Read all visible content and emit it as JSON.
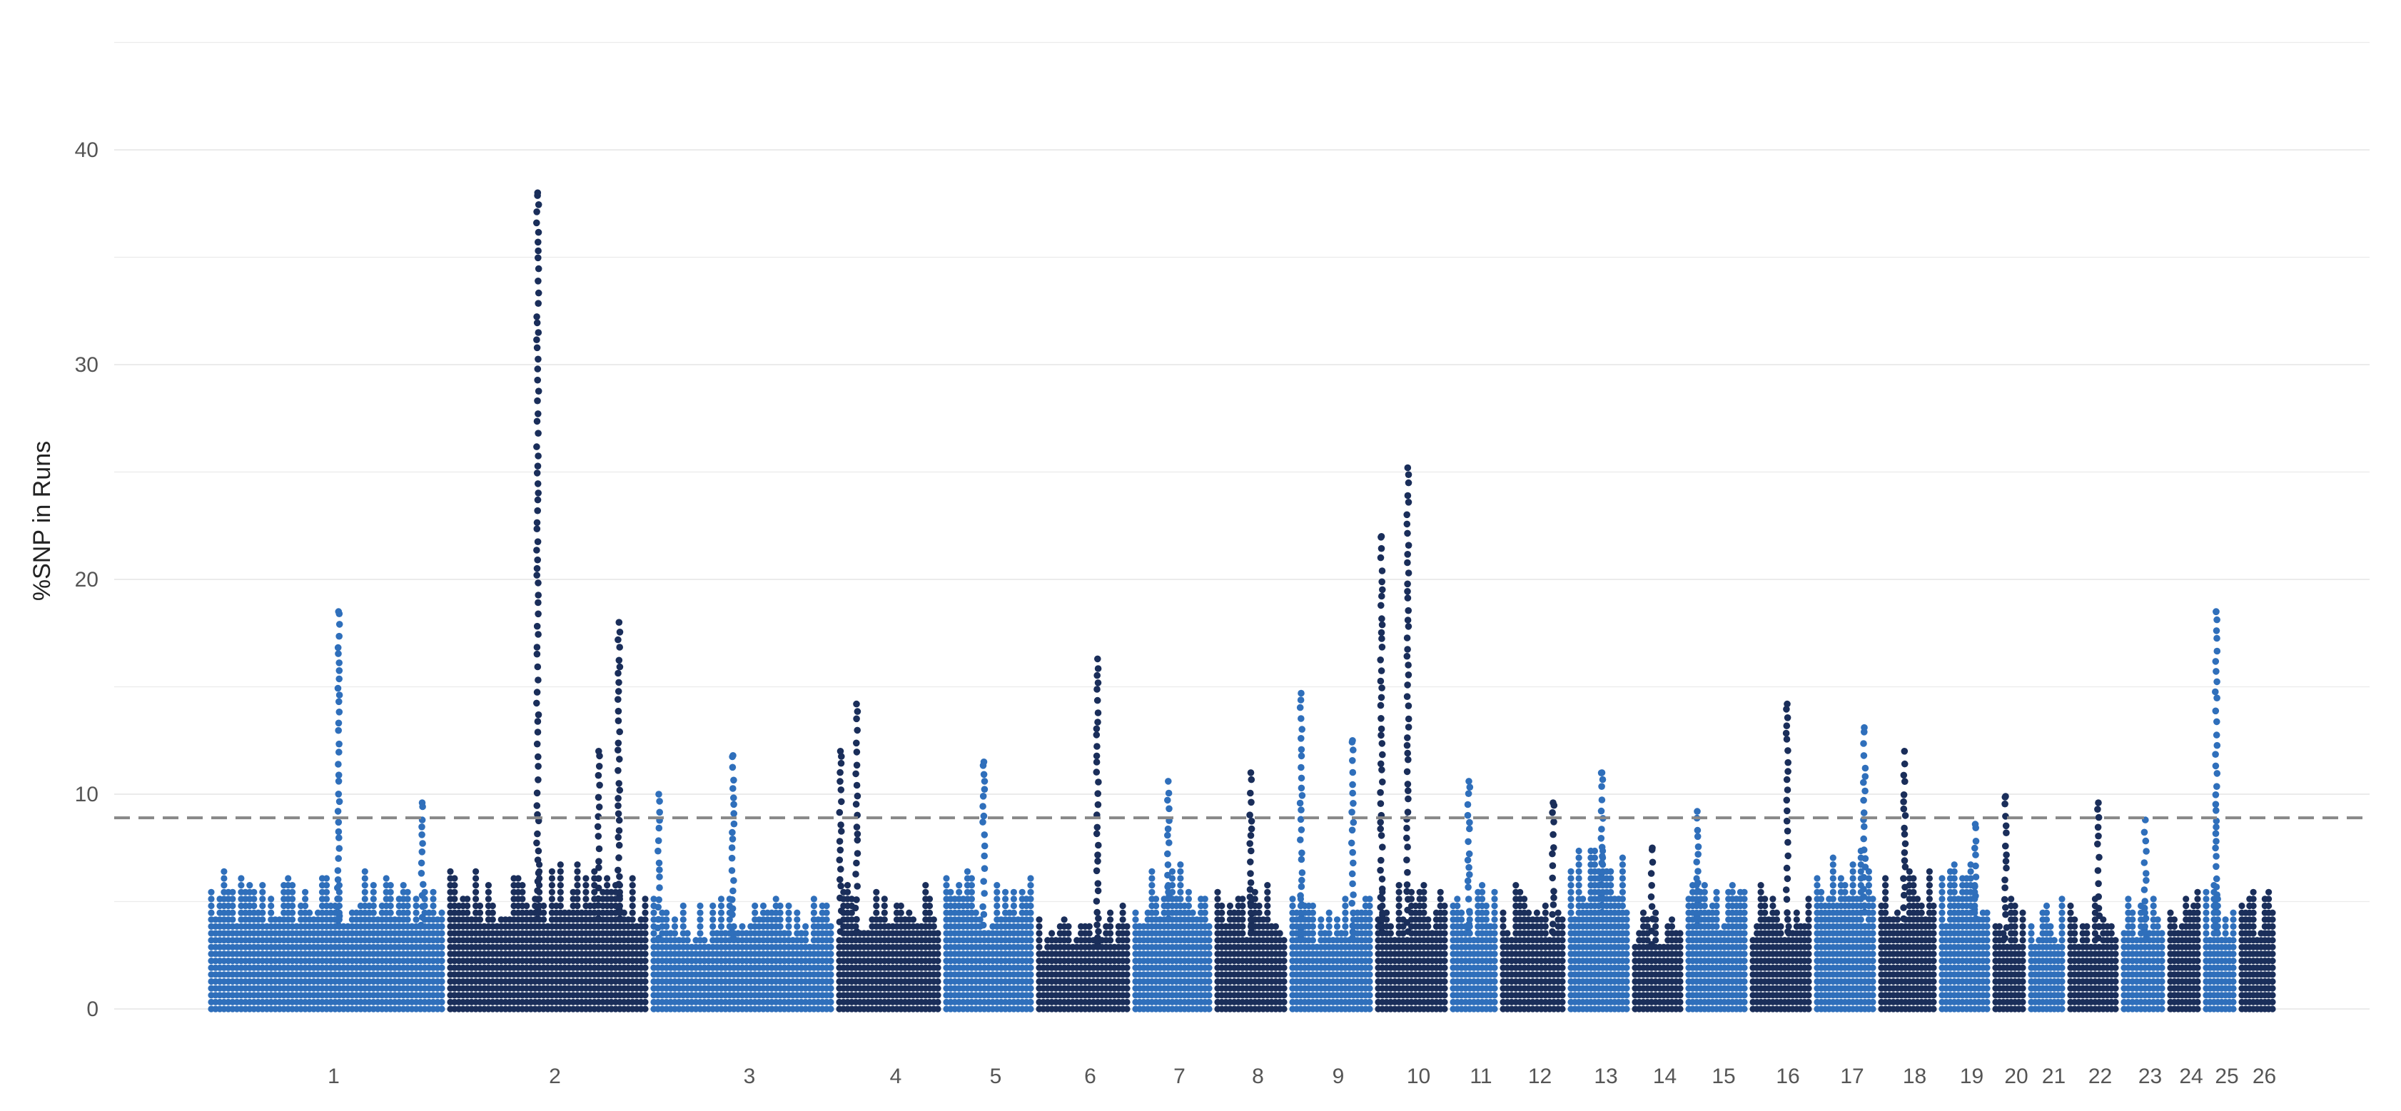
{
  "chart_data": {
    "type": "scatter",
    "title": "",
    "xlabel": "",
    "ylabel": "%SNP in Runs",
    "ylim": [
      0,
      45
    ],
    "yticks": [
      "0",
      "10",
      "20",
      "30",
      "40"
    ],
    "grid": true,
    "threshold": 8.9,
    "colors": {
      "light": "#2f6fbb",
      "dark": "#1a2e5a",
      "threshold": "#888888",
      "grid": "#ebebeb"
    },
    "chromosomes": [
      {
        "label": "1",
        "max": 18.5,
        "typical_max": 6.5,
        "peaks": [
          {
            "pos": 0.55,
            "value": 18.5
          },
          {
            "pos": 0.9,
            "value": 9.6
          }
        ]
      },
      {
        "label": "2",
        "max": 38.0,
        "typical_max": 7.0,
        "peaks": [
          {
            "pos": 0.45,
            "value": 38.0
          },
          {
            "pos": 0.85,
            "value": 18.0
          },
          {
            "pos": 0.75,
            "value": 12.0
          }
        ]
      },
      {
        "label": "3",
        "max": 11.8,
        "typical_max": 5.5,
        "peaks": [
          {
            "pos": 0.45,
            "value": 11.8
          },
          {
            "pos": 0.05,
            "value": 10.0
          }
        ]
      },
      {
        "label": "4",
        "max": 14.2,
        "typical_max": 6.0,
        "peaks": [
          {
            "pos": 0.2,
            "value": 14.2
          },
          {
            "pos": 0.05,
            "value": 12.0
          }
        ]
      },
      {
        "label": "5",
        "max": 11.5,
        "typical_max": 6.5,
        "peaks": [
          {
            "pos": 0.45,
            "value": 11.5
          }
        ]
      },
      {
        "label": "6",
        "max": 16.3,
        "typical_max": 5.0,
        "peaks": [
          {
            "pos": 0.65,
            "value": 16.3
          }
        ]
      },
      {
        "label": "7",
        "max": 10.6,
        "typical_max": 7.0,
        "peaks": [
          {
            "pos": 0.45,
            "value": 10.6
          }
        ]
      },
      {
        "label": "8",
        "max": 11.0,
        "typical_max": 6.0,
        "peaks": [
          {
            "pos": 0.5,
            "value": 11.0
          }
        ]
      },
      {
        "label": "9",
        "max": 14.7,
        "typical_max": 5.5,
        "peaks": [
          {
            "pos": 0.15,
            "value": 14.7
          },
          {
            "pos": 0.75,
            "value": 12.5
          }
        ]
      },
      {
        "label": "10",
        "max": 25.2,
        "typical_max": 6.0,
        "peaks": [
          {
            "pos": 0.45,
            "value": 25.2
          },
          {
            "pos": 0.1,
            "value": 22.0
          }
        ]
      },
      {
        "label": "11",
        "max": 10.6,
        "typical_max": 6.0,
        "peaks": [
          {
            "pos": 0.4,
            "value": 10.6
          }
        ]
      },
      {
        "label": "12",
        "max": 9.6,
        "typical_max": 6.0,
        "peaks": [
          {
            "pos": 0.8,
            "value": 9.6
          }
        ]
      },
      {
        "label": "13",
        "max": 11.0,
        "typical_max": 7.5,
        "peaks": [
          {
            "pos": 0.55,
            "value": 11.0
          }
        ]
      },
      {
        "label": "14",
        "max": 7.5,
        "typical_max": 5.0,
        "peaks": [
          {
            "pos": 0.4,
            "value": 7.5
          }
        ]
      },
      {
        "label": "15",
        "max": 9.2,
        "typical_max": 6.5,
        "peaks": [
          {
            "pos": 0.2,
            "value": 9.2
          }
        ]
      },
      {
        "label": "16",
        "max": 14.2,
        "typical_max": 6.0,
        "peaks": [
          {
            "pos": 0.6,
            "value": 14.2
          }
        ]
      },
      {
        "label": "17",
        "max": 13.1,
        "typical_max": 7.5,
        "peaks": [
          {
            "pos": 0.8,
            "value": 13.1
          }
        ]
      },
      {
        "label": "18",
        "max": 12.0,
        "typical_max": 7.0,
        "peaks": [
          {
            "pos": 0.45,
            "value": 12.0
          }
        ]
      },
      {
        "label": "19",
        "max": 8.6,
        "typical_max": 7.0,
        "peaks": [
          {
            "pos": 0.7,
            "value": 8.6
          }
        ]
      },
      {
        "label": "20",
        "max": 9.9,
        "typical_max": 5.5,
        "peaks": [
          {
            "pos": 0.4,
            "value": 9.9
          }
        ]
      },
      {
        "label": "21",
        "max": 6.0,
        "typical_max": 5.5,
        "peaks": []
      },
      {
        "label": "22",
        "max": 9.6,
        "typical_max": 5.5,
        "peaks": [
          {
            "pos": 0.6,
            "value": 9.6
          }
        ]
      },
      {
        "label": "23",
        "max": 8.8,
        "typical_max": 5.5,
        "peaks": [
          {
            "pos": 0.55,
            "value": 8.8
          }
        ]
      },
      {
        "label": "24",
        "max": 7.0,
        "typical_max": 6.0,
        "peaks": []
      },
      {
        "label": "25",
        "max": 18.5,
        "typical_max": 6.0,
        "peaks": [
          {
            "pos": 0.4,
            "value": 18.5
          }
        ]
      },
      {
        "label": "26",
        "max": 6.5,
        "typical_max": 6.0,
        "peaks": []
      }
    ]
  }
}
